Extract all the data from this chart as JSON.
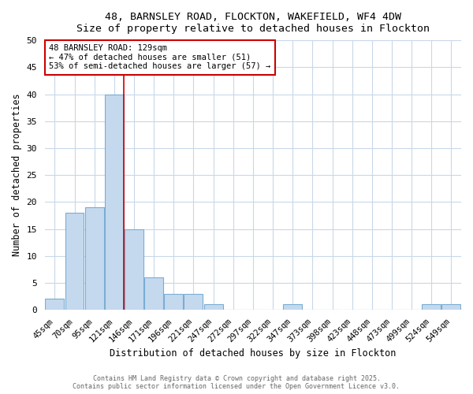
{
  "title_line1": "48, BARNSLEY ROAD, FLOCKTON, WAKEFIELD, WF4 4DW",
  "title_line2": "Size of property relative to detached houses in Flockton",
  "xlabel": "Distribution of detached houses by size in Flockton",
  "ylabel": "Number of detached properties",
  "categories": [
    "45sqm",
    "70sqm",
    "95sqm",
    "121sqm",
    "146sqm",
    "171sqm",
    "196sqm",
    "221sqm",
    "247sqm",
    "272sqm",
    "297sqm",
    "322sqm",
    "347sqm",
    "373sqm",
    "398sqm",
    "423sqm",
    "448sqm",
    "473sqm",
    "499sqm",
    "524sqm",
    "549sqm"
  ],
  "values": [
    2,
    18,
    19,
    40,
    15,
    6,
    3,
    3,
    1,
    0,
    0,
    0,
    1,
    0,
    0,
    0,
    0,
    0,
    0,
    1,
    1
  ],
  "bar_color": "#c5d9ee",
  "bar_edge_color": "#7aadd4",
  "vline_x_index": 3.5,
  "annotation_line1": "48 BARNSLEY ROAD: 129sqm",
  "annotation_line2": "← 47% of detached houses are smaller (51)",
  "annotation_line3": "53% of semi-detached houses are larger (57) →",
  "annotation_box_color": "#ffffff",
  "annotation_box_edge": "#cc0000",
  "vline_color": "#cc0000",
  "ylim": [
    0,
    50
  ],
  "yticks": [
    0,
    5,
    10,
    15,
    20,
    25,
    30,
    35,
    40,
    45,
    50
  ],
  "footer_line1": "Contains HM Land Registry data © Crown copyright and database right 2025.",
  "footer_line2": "Contains public sector information licensed under the Open Government Licence v3.0.",
  "bg_color": "#ffffff",
  "plot_bg_color": "#ffffff",
  "grid_color": "#c8d8e8"
}
